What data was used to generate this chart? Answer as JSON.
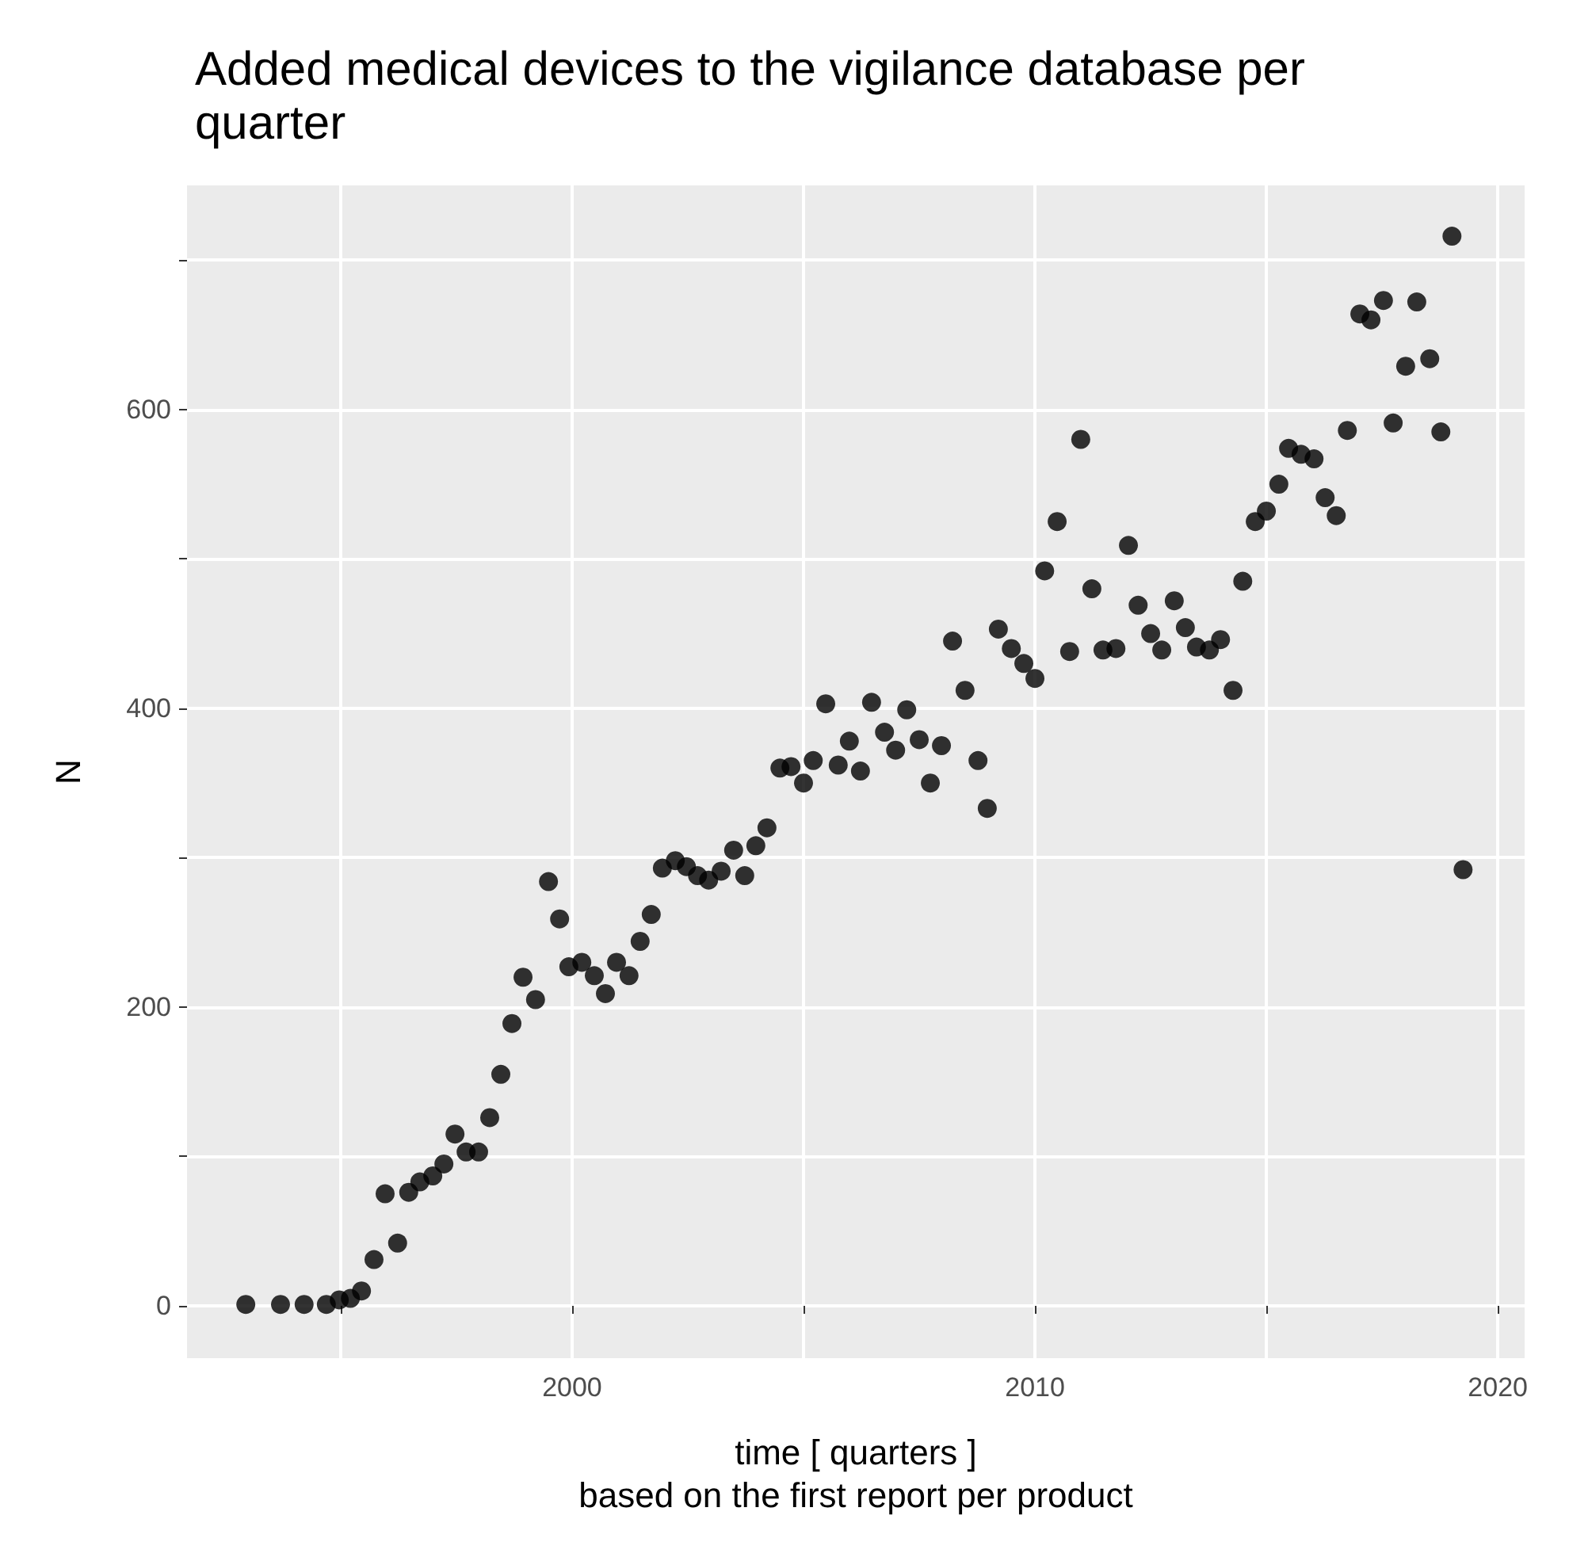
{
  "chart_data": {
    "type": "scatter",
    "title": "Added medical devices to the vigilance database per quarter",
    "xlabel": "time [ quarters ]\nbased on the first report per product",
    "ylabel": "N",
    "xlim": [
      1991.68,
      2020.58
    ],
    "ylim": [
      -35,
      750
    ],
    "xticks": [
      {
        "value": 1995,
        "label": null
      },
      2000,
      {
        "value": 2005,
        "label": null
      },
      2010,
      {
        "value": 2015,
        "label": null
      },
      2020
    ],
    "yticks": [
      0,
      {
        "value": 100,
        "label": null
      },
      200,
      {
        "value": 300,
        "label": null
      },
      400,
      {
        "value": 500,
        "label": null
      },
      600,
      {
        "value": 700,
        "label": null
      }
    ],
    "grid": true,
    "marker": "circle",
    "series": [
      {
        "color": "#000000",
        "x": [
          1992.95,
          1993.7,
          1994.21,
          1994.69,
          1994.97,
          1995.21,
          1995.45,
          1995.72,
          1995.96,
          1996.23,
          1996.47,
          1996.71,
          1996.99,
          1997.23,
          1997.47,
          1997.71,
          1997.98,
          1998.22,
          1998.46,
          1998.7,
          1998.94,
          1999.21,
          1999.49,
          1999.73,
          1999.93,
          2000.21,
          2000.48,
          2000.72,
          2000.96,
          2001.23,
          2001.47,
          2001.71,
          2001.95,
          2002.23,
          2002.47,
          2002.71,
          2002.95,
          2003.22,
          2003.49,
          2003.73,
          2003.97,
          2004.21,
          2004.49,
          2004.73,
          2005.0,
          2005.21,
          2005.48,
          2005.75,
          2005.99,
          2006.23,
          2006.47,
          2006.75,
          2006.99,
          2007.23,
          2007.5,
          2007.74,
          2007.98,
          2008.22,
          2008.49,
          2008.77,
          2008.97,
          2009.21,
          2009.49,
          2009.76,
          2010.0,
          2010.21,
          2010.48,
          2010.75,
          2010.99,
          2011.23,
          2011.47,
          2011.75,
          2012.02,
          2012.23,
          2012.5,
          2012.74,
          2013.01,
          2013.25,
          2013.49,
          2013.77,
          2014.01,
          2014.28,
          2014.49,
          2014.76,
          2015.0,
          2015.27,
          2015.48,
          2015.75,
          2016.03,
          2016.27,
          2016.51,
          2016.75,
          2017.02,
          2017.26,
          2017.53,
          2017.74,
          2018.01,
          2018.25,
          2018.53,
          2018.77,
          2019.01,
          2019.25
        ],
        "values": [
          1,
          1,
          1,
          1,
          4,
          5,
          10,
          31,
          75,
          42,
          76,
          83,
          87,
          95,
          115,
          103,
          103,
          126,
          155,
          189,
          220,
          205,
          284,
          259,
          227,
          230,
          221,
          209,
          230,
          221,
          244,
          262,
          293,
          298,
          294,
          288,
          285,
          291,
          305,
          288,
          308,
          320,
          360,
          361,
          350,
          365,
          403,
          362,
          378,
          358,
          404,
          384,
          372,
          399,
          379,
          350,
          375,
          445,
          412,
          365,
          333,
          453,
          440,
          430,
          420,
          492,
          525,
          438,
          580,
          480,
          439,
          440,
          509,
          469,
          450,
          439,
          472,
          454,
          441,
          439,
          446,
          412,
          485,
          525,
          532,
          550,
          574,
          570,
          567,
          541,
          529,
          586,
          664,
          660,
          673,
          591,
          629,
          672,
          634,
          585,
          716,
          292
        ]
      }
    ]
  }
}
